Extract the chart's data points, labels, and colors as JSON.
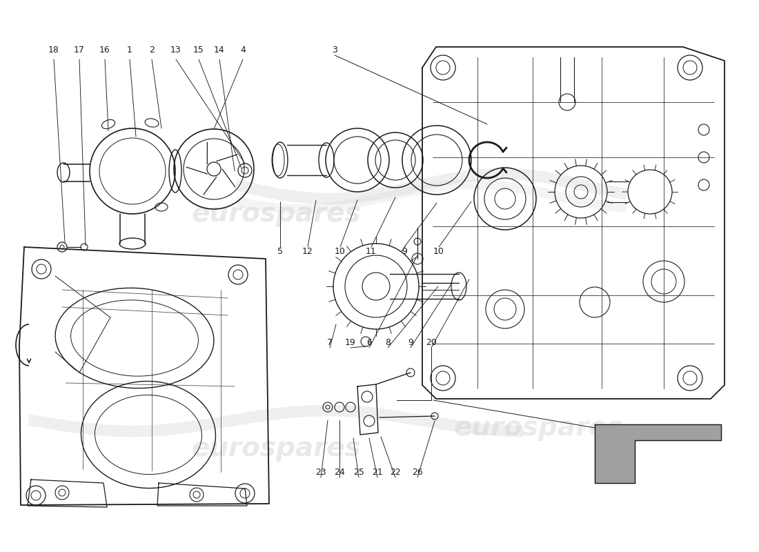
{
  "bg_color": "#ffffff",
  "line_color": "#1a1a1a",
  "wm_color": "#c8c8c8",
  "wm_text": "eurospares",
  "fig_w": 11.0,
  "fig_h": 8.0,
  "dpi": 100
}
